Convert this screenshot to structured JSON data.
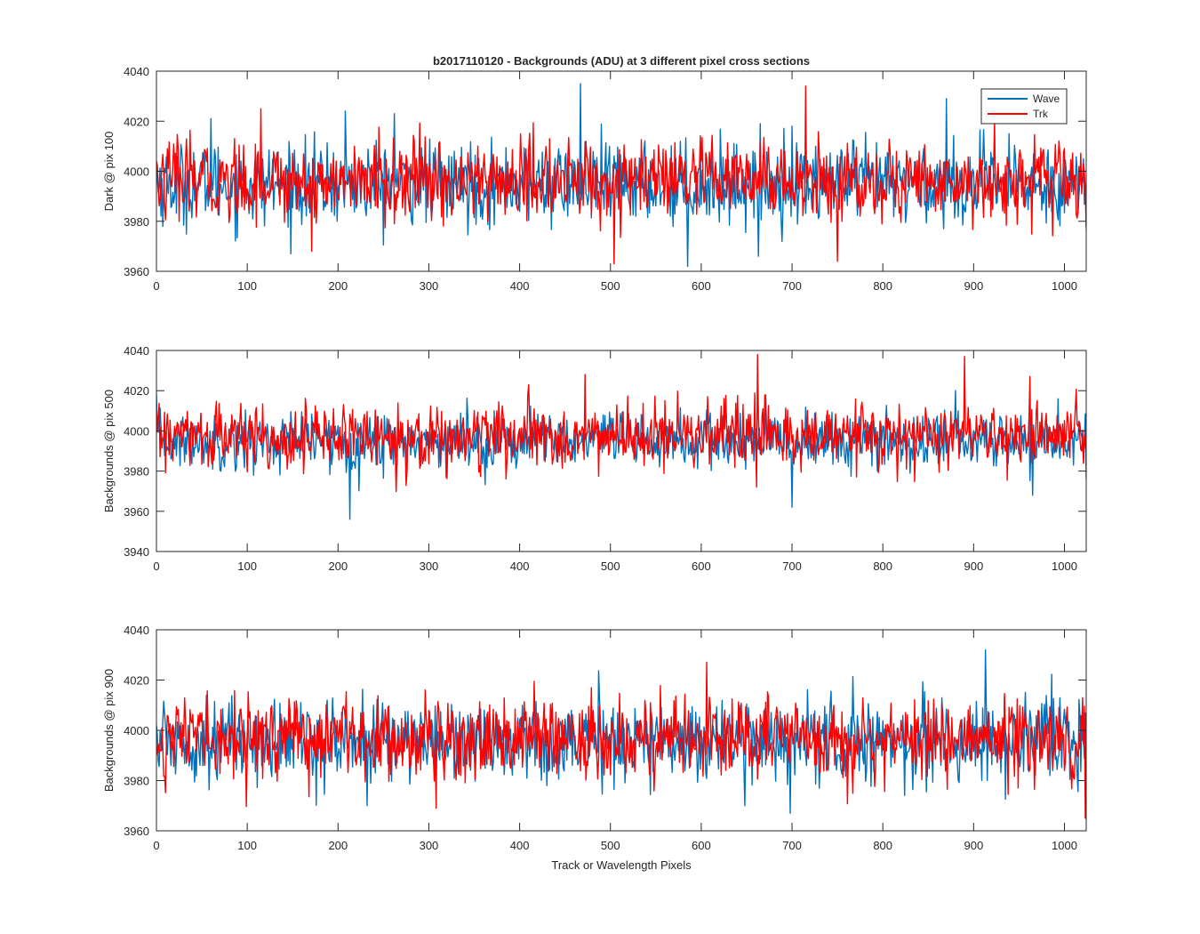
{
  "figure": {
    "title": "b2017110120 - Backgrounds (ADU) at 3 different pixel cross sections",
    "xlabel": "Track or Wavelength Pixels"
  },
  "legend": {
    "placement": "top-right",
    "entries": [
      {
        "label": "Wave",
        "color": "#0072BD"
      },
      {
        "label": "Trk",
        "color": "#FF0000"
      }
    ]
  },
  "chart_data": [
    {
      "type": "line",
      "title": "b2017110120 - Backgrounds (ADU) at 3 different pixel cross sections",
      "xlabel": "",
      "ylabel": "Dark @ pix 100",
      "xlim": [
        0,
        1024
      ],
      "ylim": [
        3960,
        4040
      ],
      "xticks": [
        0,
        100,
        200,
        300,
        400,
        500,
        600,
        700,
        800,
        900,
        1000
      ],
      "yticks": [
        3960,
        3980,
        4000,
        4020,
        4040
      ],
      "legend": "top-right",
      "grid": false,
      "series": [
        {
          "name": "Wave",
          "color": "#0072BD",
          "mean": 3995,
          "noise_std": 8,
          "features": [
            [
              0,
              4003
            ],
            [
              60,
              4021
            ],
            [
              208,
              4024
            ],
            [
              262,
              4023
            ],
            [
              467,
              4035
            ],
            [
              585,
              3962
            ],
            [
              663,
              3966
            ],
            [
              700,
              4018
            ],
            [
              870,
              4029
            ],
            [
              1024,
              3977
            ]
          ]
        },
        {
          "name": "Trk",
          "color": "#FF0000",
          "mean": 3996,
          "noise_std": 8,
          "features": [
            [
              0,
              4004
            ],
            [
              115,
              4025
            ],
            [
              171,
              3968
            ],
            [
              504,
              3963
            ],
            [
              715,
              4034
            ],
            [
              750,
              3964
            ],
            [
              923,
              4020
            ],
            [
              1024,
              3978
            ]
          ]
        }
      ]
    },
    {
      "type": "line",
      "title": "",
      "xlabel": "",
      "ylabel": "Backgrounds @ pix 500",
      "xlim": [
        0,
        1024
      ],
      "ylim": [
        3940,
        4040
      ],
      "xticks": [
        0,
        100,
        200,
        300,
        400,
        500,
        600,
        700,
        800,
        900,
        1000
      ],
      "yticks": [
        3940,
        3960,
        3980,
        4000,
        4020,
        4040
      ],
      "grid": false,
      "series": [
        {
          "name": "Wave",
          "color": "#0072BD",
          "mean": 3995,
          "noise_std": 7,
          "features": [
            [
              0,
              4018
            ],
            [
              213,
              3956
            ],
            [
              700,
              3962
            ],
            [
              880,
              4020
            ],
            [
              965,
              3968
            ],
            [
              1024,
              3976
            ]
          ]
        },
        {
          "name": "Trk",
          "color": "#FF0000",
          "mean": 3997,
          "noise_std": 8,
          "features": [
            [
              0,
              4010
            ],
            [
              472,
              4028
            ],
            [
              662,
              4038
            ],
            [
              661,
              3972
            ],
            [
              890,
              4037
            ],
            [
              962,
              4027
            ],
            [
              1024,
              3990
            ]
          ]
        }
      ]
    },
    {
      "type": "line",
      "title": "",
      "xlabel": "Track or Wavelength Pixels",
      "ylabel": "Backgrounds @ pix 900",
      "xlim": [
        0,
        1024
      ],
      "ylim": [
        3960,
        4040
      ],
      "xticks": [
        0,
        100,
        200,
        300,
        400,
        500,
        600,
        700,
        800,
        900,
        1000
      ],
      "yticks": [
        3960,
        3980,
        4000,
        4020,
        4040
      ],
      "grid": false,
      "series": [
        {
          "name": "Wave",
          "color": "#0072BD",
          "mean": 3996,
          "noise_std": 8,
          "features": [
            [
              0,
              4002
            ],
            [
              232,
              3970
            ],
            [
              648,
              3970
            ],
            [
              698,
              3967
            ],
            [
              913,
              4032
            ],
            [
              1024,
              3985
            ]
          ]
        },
        {
          "name": "Trk",
          "color": "#FF0000",
          "mean": 3997,
          "noise_std": 8,
          "features": [
            [
              0,
              3990
            ],
            [
              308,
              3969
            ],
            [
              606,
              4027
            ],
            [
              1020,
              4013
            ],
            [
              1023,
              3965
            ]
          ]
        }
      ]
    }
  ]
}
